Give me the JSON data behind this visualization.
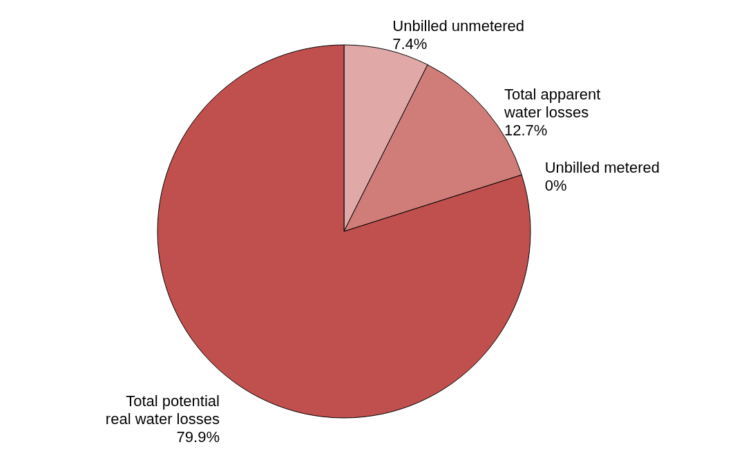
{
  "chart_data": {
    "type": "pie",
    "categories": [
      "Unbilled unmetered",
      "Total apparent water losses",
      "Unbilled metered",
      "Total potential real water losses"
    ],
    "values": [
      7.4,
      12.7,
      0,
      79.9
    ],
    "colors": [
      "#e0a9a7",
      "#d07d7a",
      "#c0504d",
      "#c0504d"
    ],
    "value_labels": [
      "7.4%",
      "12.7%",
      "0%",
      "79.9%"
    ],
    "legend": false
  }
}
